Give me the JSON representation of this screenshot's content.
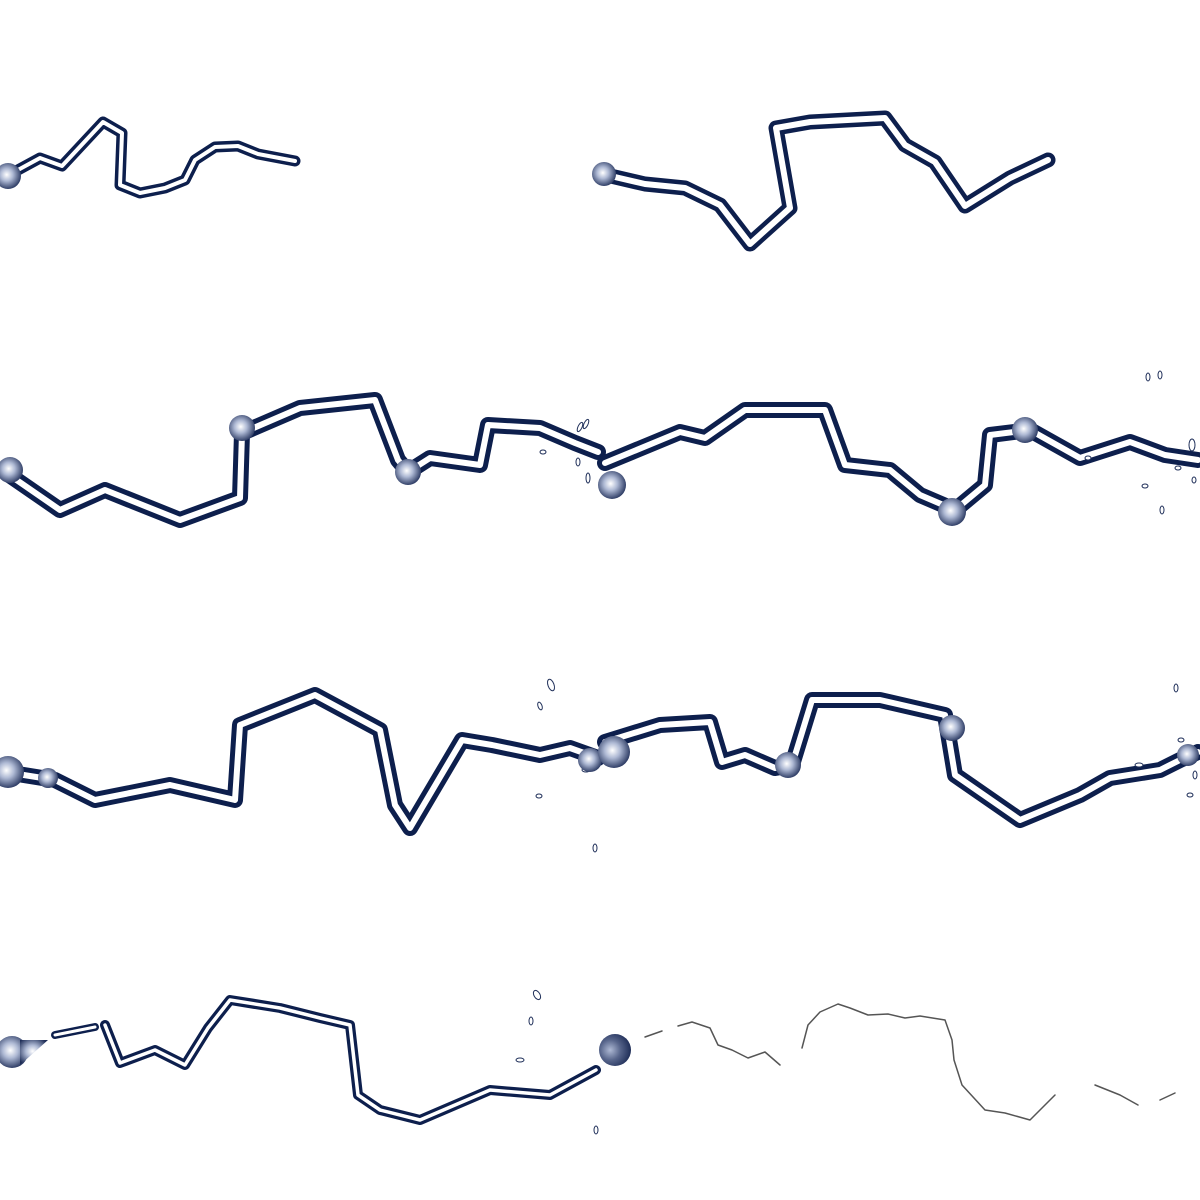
{
  "sprite_sheet": {
    "kind": "lightning bolt animation frames",
    "grid": {
      "columns": 2,
      "rows": 4
    },
    "frame_count": 8,
    "colors": {
      "background": "#ffffff",
      "bolt_outline": "#0d1f4d",
      "bolt_core": "#ffffff",
      "glow_dark": "#1e2d57",
      "glow_light": "#ffffff",
      "spark_outline": "#20305a",
      "faded_bolt": "#555555"
    },
    "frames": [
      {
        "index": 1,
        "stage": "forming",
        "has_sparks": false
      },
      {
        "index": 2,
        "stage": "extending",
        "has_sparks": false
      },
      {
        "index": 3,
        "stage": "full-strike",
        "has_sparks": true
      },
      {
        "index": 4,
        "stage": "full-strike",
        "has_sparks": true
      },
      {
        "index": 5,
        "stage": "full-strike",
        "has_sparks": true
      },
      {
        "index": 6,
        "stage": "full-strike",
        "has_sparks": true
      },
      {
        "index": 7,
        "stage": "breaking-up",
        "has_sparks": true
      },
      {
        "index": 8,
        "stage": "fading",
        "has_sparks": false
      }
    ]
  }
}
